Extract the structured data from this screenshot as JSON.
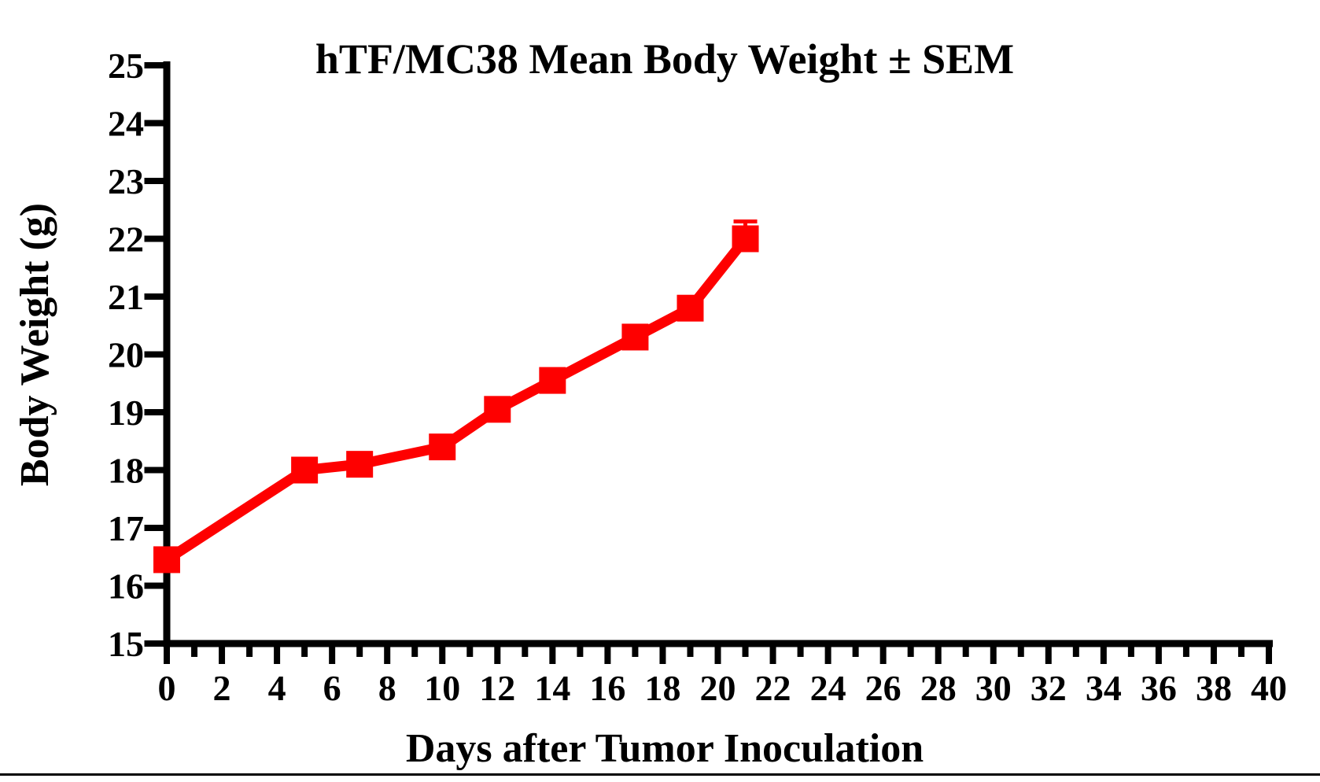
{
  "page": {
    "background": "#ffffff",
    "bottom_border_color": "#000000"
  },
  "chart_data": {
    "type": "line",
    "title": "hTF/MC38 Mean Body Weight ± SEM",
    "xlabel": "Days after Tumor Inoculation",
    "ylabel": "Body Weight (g)",
    "grid": false,
    "legend": "none",
    "axis_color": "#000000",
    "series": [
      {
        "name": "hTF/MC38",
        "color": "#fe0000",
        "marker": "square",
        "x": [
          0,
          5,
          7,
          10,
          12,
          14,
          17,
          19,
          21
        ],
        "y": [
          16.45,
          18.0,
          18.1,
          18.4,
          19.05,
          19.55,
          20.3,
          20.8,
          22.0
        ],
        "sem_upper": [
          0,
          0,
          0,
          0,
          0,
          0,
          0,
          0,
          0.3
        ],
        "error_bar_direction": "up"
      }
    ],
    "x_axis": {
      "min": 0,
      "max": 40,
      "major_tick_step": 2,
      "minor_tick_step": 1,
      "tick_labels": [
        "0",
        "2",
        "4",
        "6",
        "8",
        "10",
        "12",
        "14",
        "16",
        "18",
        "20",
        "22",
        "24",
        "26",
        "28",
        "30",
        "32",
        "34",
        "36",
        "38",
        "40"
      ]
    },
    "y_axis": {
      "min": 15,
      "max": 25,
      "major_tick_step": 1,
      "tick_labels": [
        "15",
        "16",
        "17",
        "18",
        "19",
        "20",
        "21",
        "22",
        "23",
        "24",
        "25"
      ]
    }
  }
}
